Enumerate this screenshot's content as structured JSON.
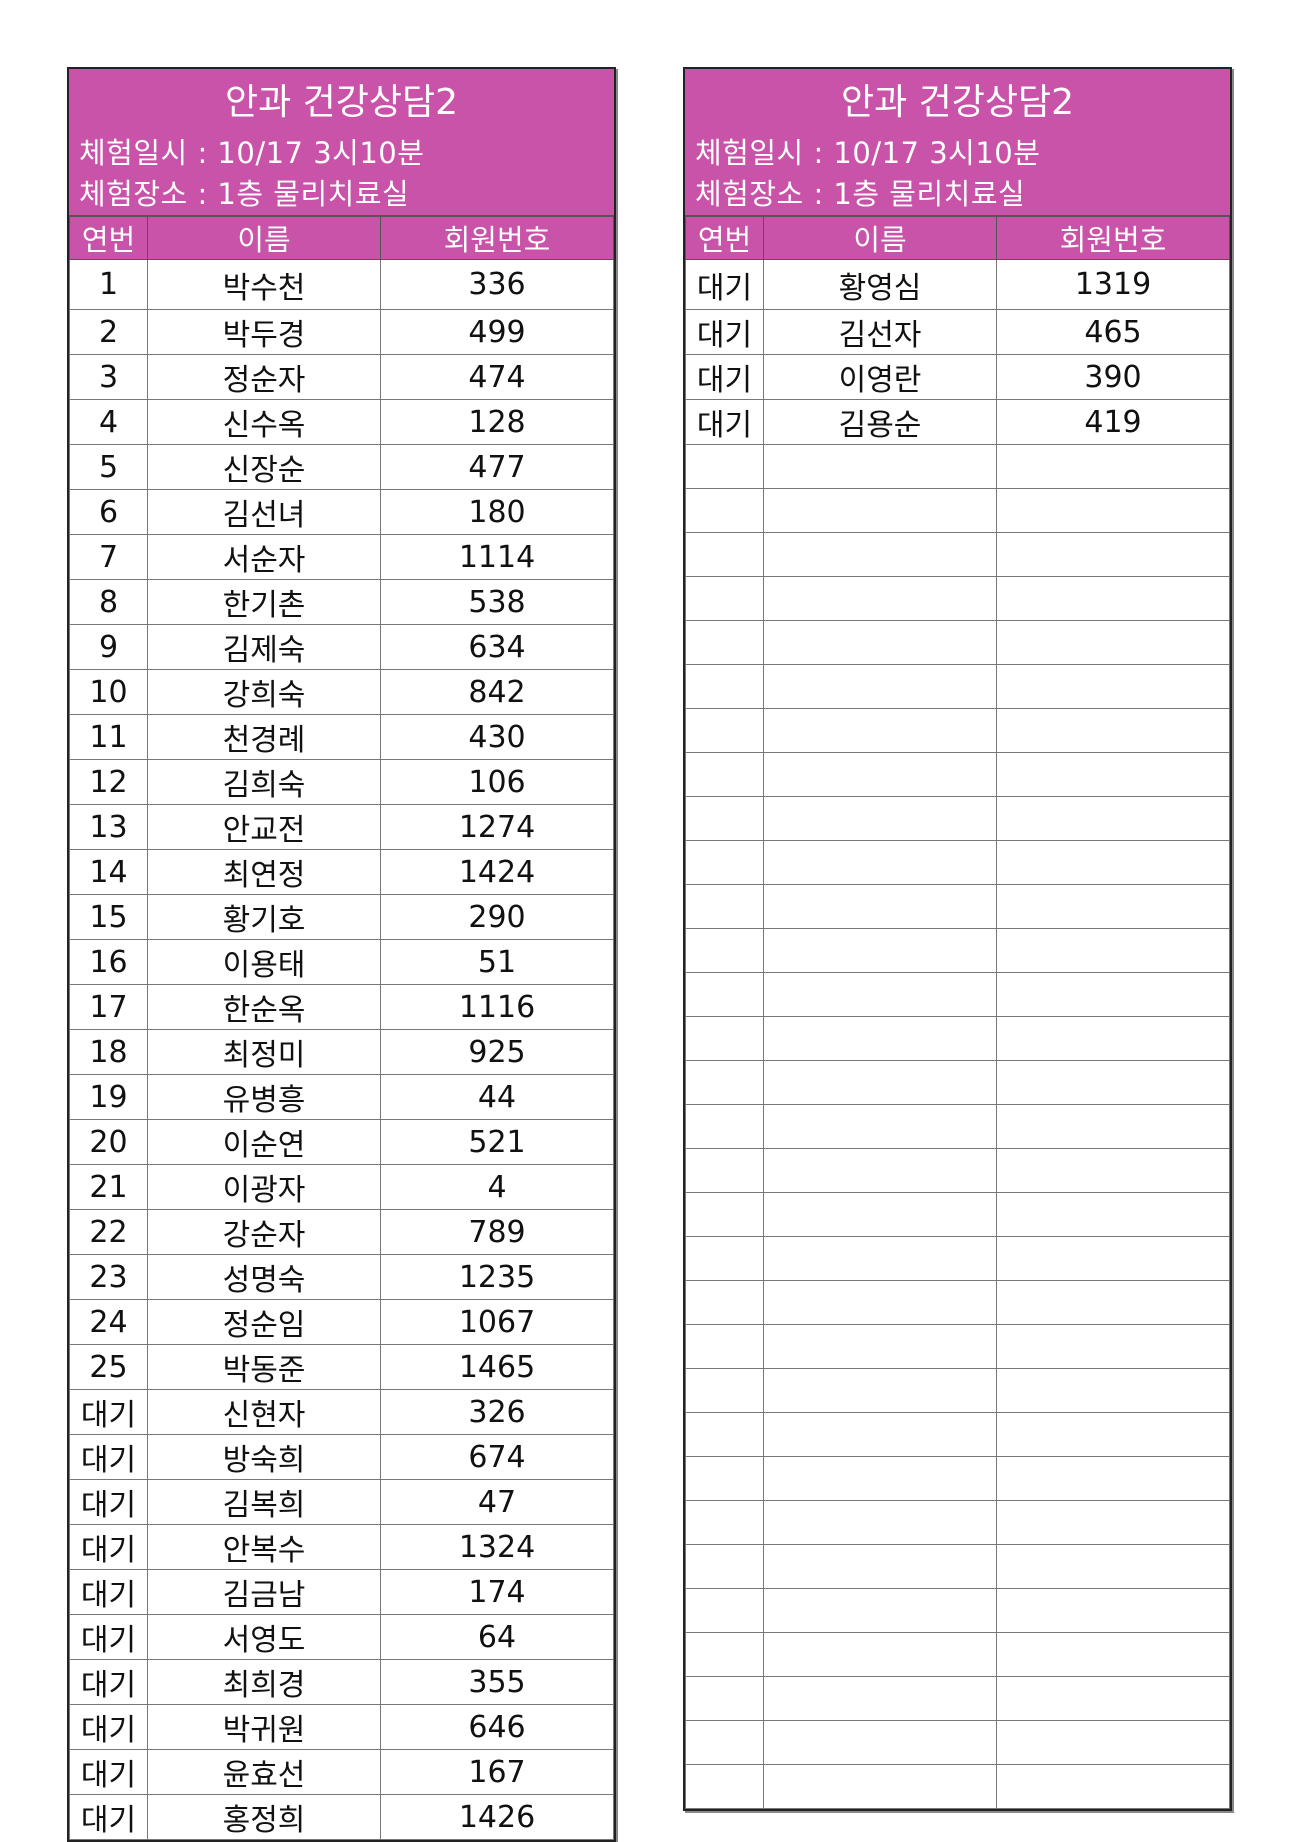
{
  "tables": [
    {
      "title": "안과 건강상담2",
      "date_line": "체험일시 : 10/17 3시10분",
      "place_line": "체험장소 : 1층 물리치료실",
      "columns": [
        "연번",
        "이름",
        "회원번호"
      ],
      "rows": [
        [
          "1",
          "박수천",
          "336"
        ],
        [
          "2",
          "박두경",
          "499"
        ],
        [
          "3",
          "정순자",
          "474"
        ],
        [
          "4",
          "신수옥",
          "128"
        ],
        [
          "5",
          "신장순",
          "477"
        ],
        [
          "6",
          "김선녀",
          "180"
        ],
        [
          "7",
          "서순자",
          "1114"
        ],
        [
          "8",
          "한기촌",
          "538"
        ],
        [
          "9",
          "김제숙",
          "634"
        ],
        [
          "10",
          "강희숙",
          "842"
        ],
        [
          "11",
          "천경례",
          "430"
        ],
        [
          "12",
          "김희숙",
          "106"
        ],
        [
          "13",
          "안교전",
          "1274"
        ],
        [
          "14",
          "최연정",
          "1424"
        ],
        [
          "15",
          "황기호",
          "290"
        ],
        [
          "16",
          "이용태",
          "51"
        ],
        [
          "17",
          "한순옥",
          "1116"
        ],
        [
          "18",
          "최정미",
          "925"
        ],
        [
          "19",
          "유병흥",
          "44"
        ],
        [
          "20",
          "이순연",
          "521"
        ],
        [
          "21",
          "이광자",
          "4"
        ],
        [
          "22",
          "강순자",
          "789"
        ],
        [
          "23",
          "성명숙",
          "1235"
        ],
        [
          "24",
          "정순임",
          "1067"
        ],
        [
          "25",
          "박동준",
          "1465"
        ],
        [
          "대기",
          "신현자",
          "326"
        ],
        [
          "대기",
          "방숙희",
          "674"
        ],
        [
          "대기",
          "김복희",
          "47"
        ],
        [
          "대기",
          "안복수",
          "1324"
        ],
        [
          "대기",
          "김금남",
          "174"
        ],
        [
          "대기",
          "서영도",
          "64"
        ],
        [
          "대기",
          "최희경",
          "355"
        ],
        [
          "대기",
          "박귀원",
          "646"
        ],
        [
          "대기",
          "윤효선",
          "167"
        ],
        [
          "대기",
          "홍정희",
          "1426"
        ]
      ]
    },
    {
      "title": "안과 건강상담2",
      "date_line": "체험일시 : 10/17 3시10분",
      "place_line": "체험장소 : 1층 물리치료실",
      "columns": [
        "연번",
        "이름",
        "회원번호"
      ],
      "rows": [
        [
          "대기",
          "황영심",
          "1319"
        ],
        [
          "대기",
          "김선자",
          "465"
        ],
        [
          "대기",
          "이영란",
          "390"
        ],
        [
          "대기",
          "김용순",
          "419"
        ]
      ]
    }
  ],
  "colors": {
    "header_bg": "#c853a8",
    "header_text": "#ffffff"
  }
}
